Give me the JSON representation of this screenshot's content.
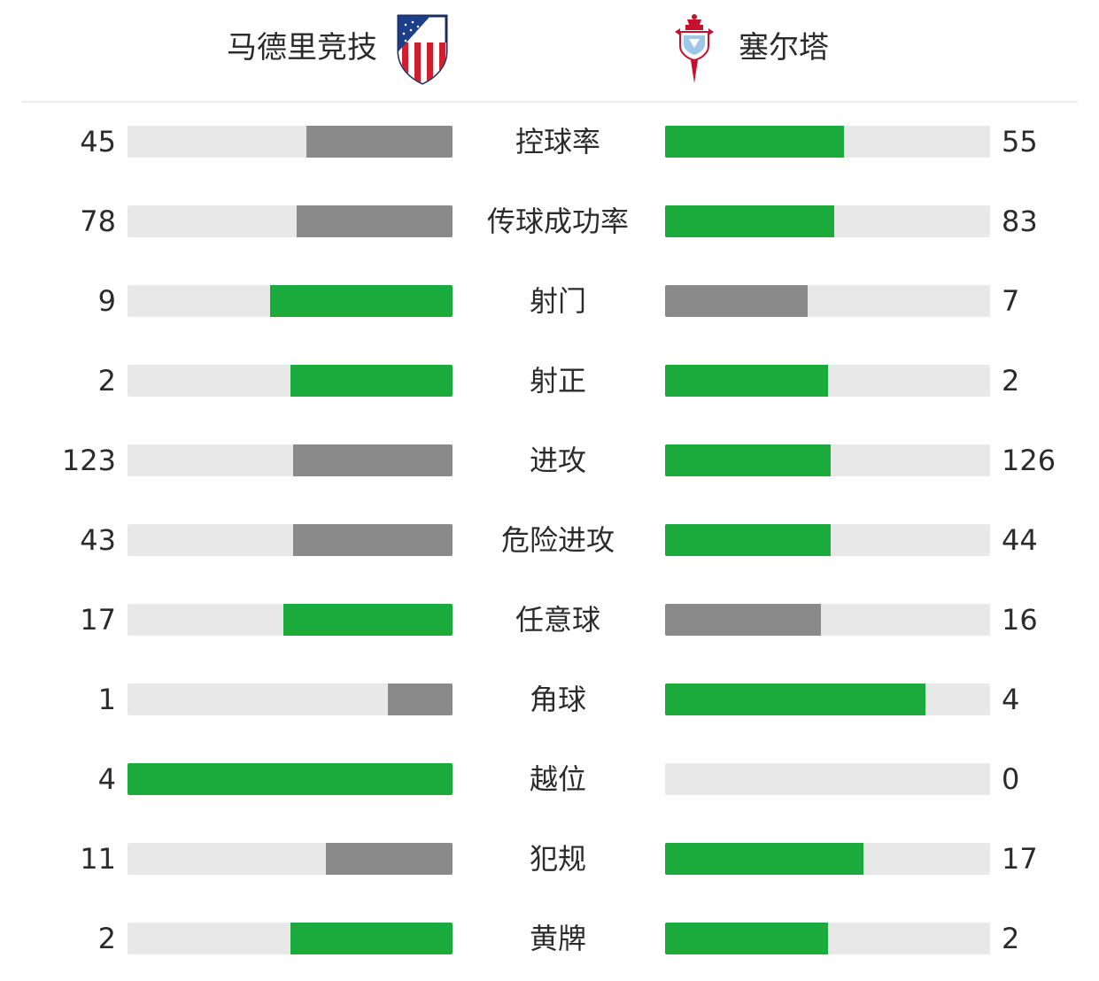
{
  "header": {
    "home_team": "马德里竞技",
    "away_team": "塞尔塔",
    "home_crest_icon": "atletico-madrid-crest-icon",
    "away_crest_icon": "celta-vigo-crest-icon"
  },
  "colors": {
    "leader": "#1aab3c",
    "trailer": "#8a8a8a",
    "track": "#e8e8e8"
  },
  "stats": [
    {
      "label": "控球率",
      "home": "45",
      "away": "55",
      "home_fill": 0.45,
      "away_fill": 0.55,
      "home_color": "#8a8a8a",
      "away_color": "#1aab3c"
    },
    {
      "label": "传球成功率",
      "home": "78",
      "away": "83",
      "home_fill": 0.48,
      "away_fill": 0.52,
      "home_color": "#8a8a8a",
      "away_color": "#1aab3c"
    },
    {
      "label": "射门",
      "home": "9",
      "away": "7",
      "home_fill": 0.5625,
      "away_fill": 0.4375,
      "home_color": "#1aab3c",
      "away_color": "#8a8a8a"
    },
    {
      "label": "射正",
      "home": "2",
      "away": "2",
      "home_fill": 0.5,
      "away_fill": 0.5,
      "home_color": "#1aab3c",
      "away_color": "#1aab3c"
    },
    {
      "label": "进攻",
      "home": "123",
      "away": "126",
      "home_fill": 0.49,
      "away_fill": 0.51,
      "home_color": "#8a8a8a",
      "away_color": "#1aab3c"
    },
    {
      "label": "危险进攻",
      "home": "43",
      "away": "44",
      "home_fill": 0.49,
      "away_fill": 0.51,
      "home_color": "#8a8a8a",
      "away_color": "#1aab3c"
    },
    {
      "label": "任意球",
      "home": "17",
      "away": "16",
      "home_fill": 0.52,
      "away_fill": 0.48,
      "home_color": "#1aab3c",
      "away_color": "#8a8a8a"
    },
    {
      "label": "角球",
      "home": "1",
      "away": "4",
      "home_fill": 0.2,
      "away_fill": 0.8,
      "home_color": "#8a8a8a",
      "away_color": "#1aab3c"
    },
    {
      "label": "越位",
      "home": "4",
      "away": "0",
      "home_fill": 1.0,
      "away_fill": 0.0,
      "home_color": "#1aab3c",
      "away_color": "#8a8a8a"
    },
    {
      "label": "犯规",
      "home": "11",
      "away": "17",
      "home_fill": 0.39,
      "away_fill": 0.61,
      "home_color": "#8a8a8a",
      "away_color": "#1aab3c"
    },
    {
      "label": "黄牌",
      "home": "2",
      "away": "2",
      "home_fill": 0.5,
      "away_fill": 0.5,
      "home_color": "#1aab3c",
      "away_color": "#1aab3c"
    }
  ]
}
